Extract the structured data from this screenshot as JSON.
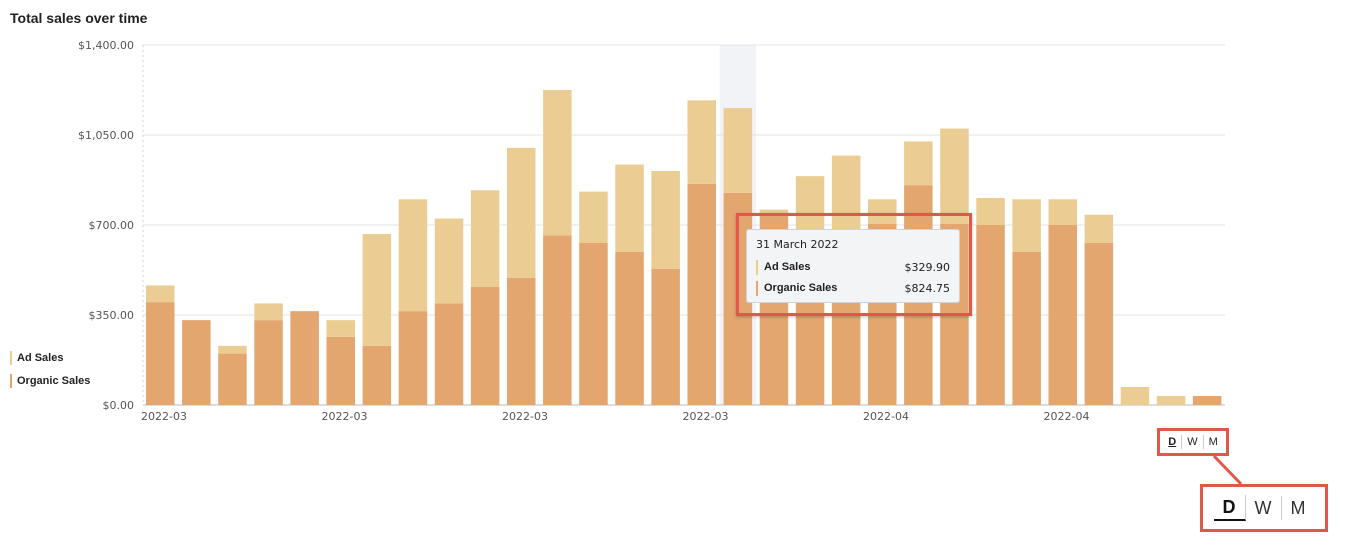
{
  "title": "Total sales over time",
  "chart_data": {
    "type": "bar",
    "stacked": true,
    "y_ticks": [
      "$0.00",
      "$350.00",
      "$700.00",
      "$1,050.00",
      "$1,400.00"
    ],
    "ylim": [
      0,
      1400
    ],
    "x_tick_labels": [
      "2022-03",
      "2022-03",
      "2022-03",
      "2022-03",
      "2022-04",
      "2022-04"
    ],
    "x_tick_bar_index": [
      0,
      5,
      10,
      15,
      20,
      25
    ],
    "highlight_index": 16,
    "series": [
      {
        "name": "Organic Sales",
        "color": "#e3a66f",
        "values": [
          400,
          330,
          200,
          330,
          365,
          265,
          230,
          365,
          395,
          460,
          495,
          660,
          630,
          595,
          530,
          860,
          824.75,
          745,
          665,
          675,
          705,
          855,
          705,
          700,
          595,
          700,
          630,
          0,
          0,
          35
        ]
      },
      {
        "name": "Ad Sales",
        "color": "#ebcd93",
        "values": [
          65,
          0,
          30,
          65,
          0,
          65,
          435,
          435,
          330,
          375,
          505,
          565,
          200,
          340,
          380,
          325,
          329.9,
          15,
          225,
          295,
          95,
          170,
          370,
          105,
          205,
          100,
          110,
          70,
          35,
          0
        ]
      }
    ],
    "legend": {
      "position": "left",
      "items": [
        {
          "label": "Ad Sales",
          "color": "#ebcd93"
        },
        {
          "label": "Organic Sales",
          "color": "#e3a66f"
        }
      ]
    },
    "grid": true
  },
  "tooltip": {
    "date": "31 March 2022",
    "rows": [
      {
        "label": "Ad Sales",
        "value": "$329.90",
        "color": "#ebcd93"
      },
      {
        "label": "Organic Sales",
        "value": "$824.75",
        "color": "#e3a66f"
      }
    ]
  },
  "granularity": {
    "options": [
      "D",
      "W",
      "M"
    ],
    "selected": "D"
  }
}
